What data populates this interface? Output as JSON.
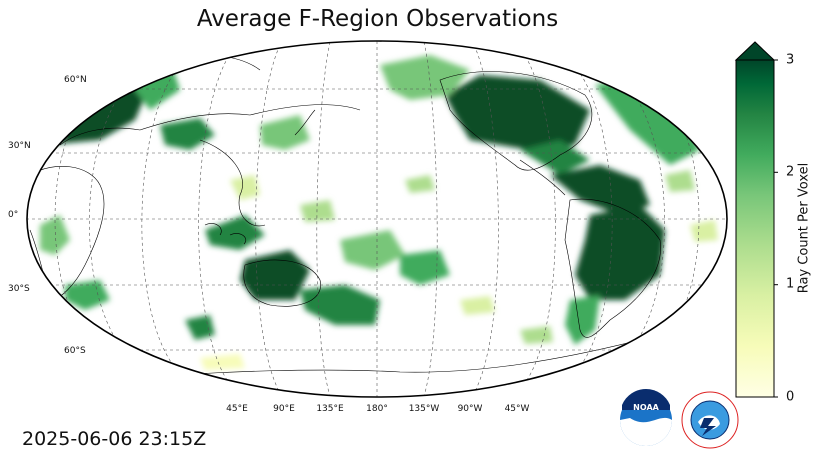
{
  "title": "Average F-Region Observations",
  "timestamp": "2025-06-06 23:15Z",
  "lat_labels": [
    "60°N",
    "30°N",
    "0°",
    "30°S",
    "60°S"
  ],
  "lon_labels": [
    "45°E",
    "90°E",
    "135°E",
    "180°",
    "135°W",
    "90°W",
    "45°W"
  ],
  "colorbar": {
    "label": "Ray Count Per Voxel",
    "ticks": [
      "0",
      "1",
      "2",
      "3"
    ],
    "range": [
      0,
      3
    ],
    "extend": "max",
    "colormap": "YlGn",
    "colors": [
      "#ffffe5",
      "#f7fcb9",
      "#d9f0a3",
      "#addd8e",
      "#78c679",
      "#41ab5d",
      "#238443",
      "#006837",
      "#004529"
    ]
  },
  "logos": {
    "noaa": "NOAA",
    "nws": "NATIONAL WEATHER SERVICE"
  },
  "colors": {
    "high": "#0b4d26",
    "mid": "#41ab5d",
    "low": "#d9f0a3"
  }
}
